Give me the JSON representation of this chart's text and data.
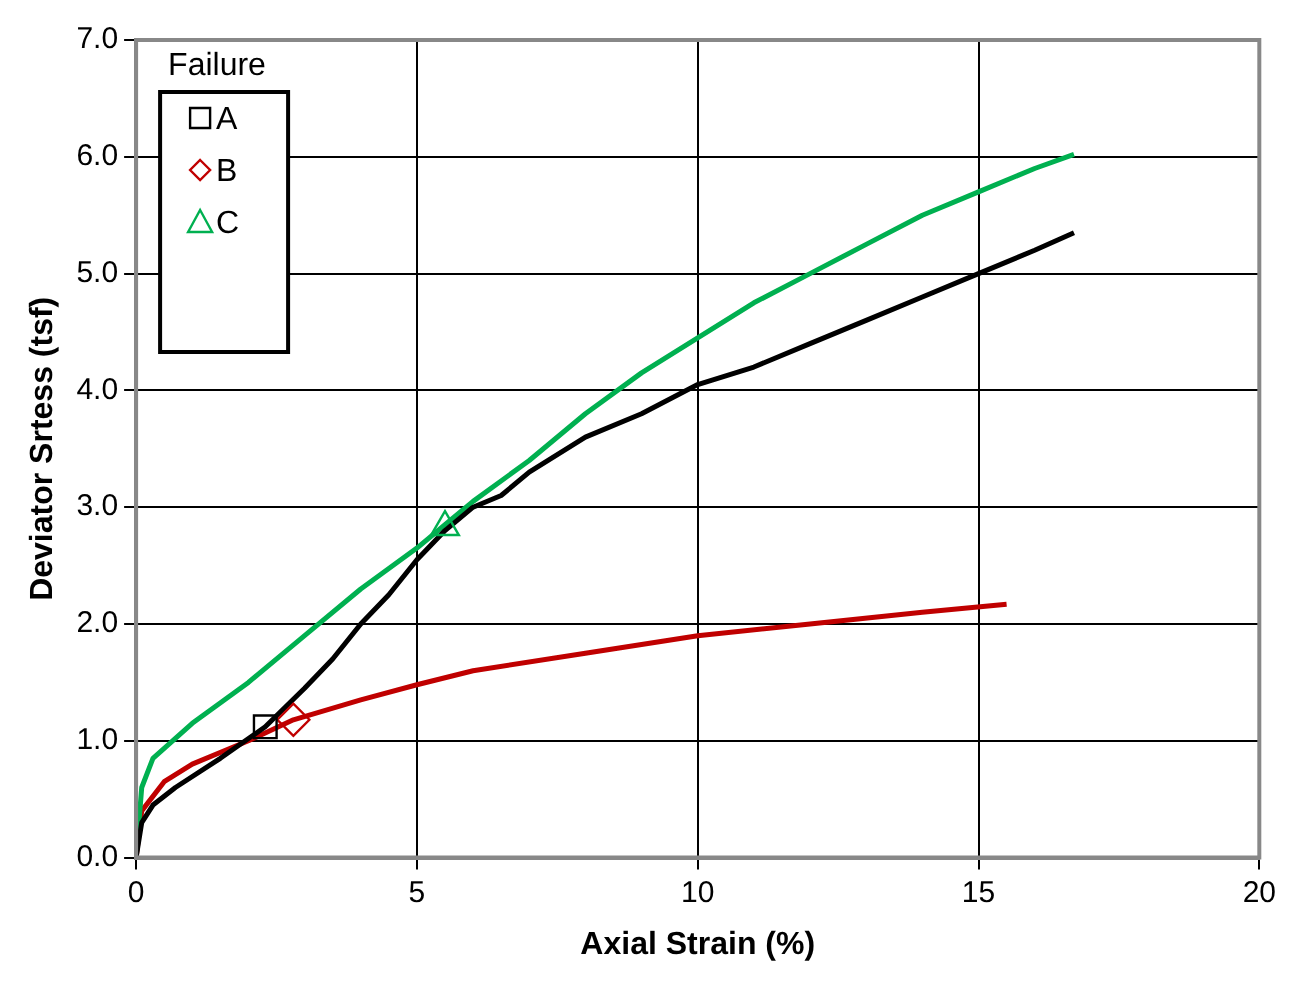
{
  "chart_data": {
    "type": "line",
    "xlabel": "Axial Strain (%)",
    "ylabel": "Deviator Srtess (tsf)",
    "legend_title": "Failure",
    "legend": "top left",
    "grid": true,
    "xlim": [
      0,
      20
    ],
    "xticks": [
      0,
      5,
      10,
      15,
      20
    ],
    "ylim": [
      0,
      7
    ],
    "yticks": [
      {
        "value": 0,
        "label": "0.0"
      },
      {
        "value": 1,
        "label": "1.0"
      },
      {
        "value": 2,
        "label": "2.0"
      },
      {
        "value": 3,
        "label": "3.0"
      },
      {
        "value": 4,
        "label": "4.0"
      },
      {
        "value": 5,
        "label": "5.0"
      },
      {
        "value": 6,
        "label": "6.0"
      },
      {
        "value": 7,
        "label": "7.0"
      }
    ],
    "series": [
      {
        "type": "line",
        "color": "#000000",
        "marker": "none",
        "x": [
          0,
          0.1,
          0.3,
          0.7,
          1.5,
          2.3,
          3,
          3.5,
          4,
          4.5,
          5,
          5.5,
          6,
          6.5,
          7,
          8,
          9,
          10,
          11,
          12,
          13,
          14,
          15,
          16,
          16.7
        ],
        "values": [
          0,
          0.3,
          0.45,
          0.6,
          0.85,
          1.12,
          1.45,
          1.7,
          2.0,
          2.25,
          2.55,
          2.8,
          3.0,
          3.1,
          3.3,
          3.6,
          3.8,
          4.05,
          4.2,
          4.4,
          4.6,
          4.8,
          5.0,
          5.2,
          5.35
        ]
      },
      {
        "type": "line",
        "color": "#00b050",
        "marker": "none",
        "x": [
          0,
          0.1,
          0.3,
          1,
          2,
          3,
          4,
          5,
          5.5,
          6,
          7,
          8,
          9,
          10,
          11,
          12,
          13,
          14,
          15,
          16,
          16.7
        ],
        "values": [
          0,
          0.6,
          0.85,
          1.15,
          1.5,
          1.9,
          2.3,
          2.65,
          2.85,
          3.05,
          3.4,
          3.8,
          4.15,
          4.45,
          4.75,
          5.0,
          5.25,
          5.5,
          5.7,
          5.9,
          6.02
        ]
      },
      {
        "type": "line",
        "color": "#c00000",
        "marker": "none",
        "x": [
          0,
          0.1,
          0.5,
          1,
          2,
          2.8,
          4,
          5,
          6,
          8,
          10,
          12,
          14,
          15.5
        ],
        "values": [
          0,
          0.4,
          0.65,
          0.8,
          1.0,
          1.18,
          1.35,
          1.48,
          1.6,
          1.75,
          1.9,
          2.0,
          2.1,
          2.17
        ]
      },
      {
        "type": "scatter",
        "name": "A",
        "color": "#000000",
        "marker": "square",
        "x": [
          2.3
        ],
        "values": [
          1.12
        ]
      },
      {
        "type": "scatter",
        "name": "B",
        "color": "#c00000",
        "marker": "diamond",
        "x": [
          2.8
        ],
        "values": [
          1.18
        ]
      },
      {
        "type": "scatter",
        "name": "C",
        "color": "#00b050",
        "marker": "triangle",
        "x": [
          5.5
        ],
        "values": [
          2.83
        ]
      }
    ]
  }
}
